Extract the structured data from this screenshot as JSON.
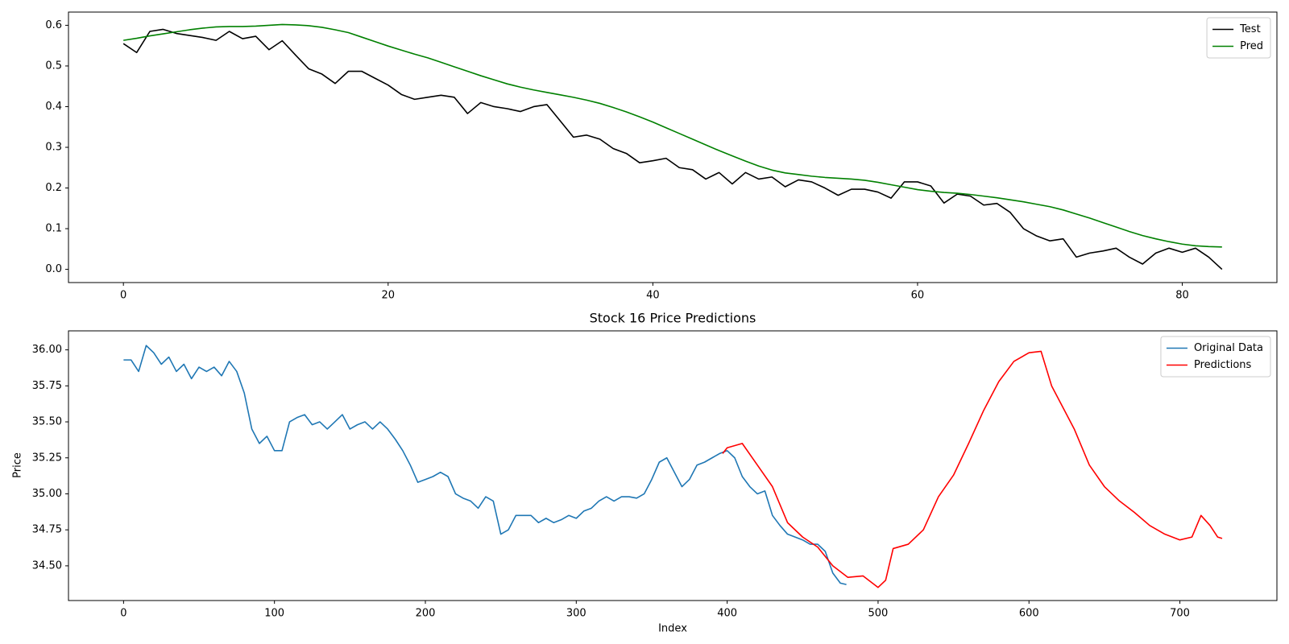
{
  "chart_data": [
    {
      "type": "line",
      "x": [
        0,
        1,
        2,
        3,
        4,
        5,
        6,
        7,
        8,
        9,
        10,
        11,
        12,
        13,
        14,
        15,
        16,
        17,
        18,
        19,
        20,
        21,
        22,
        23,
        24,
        25,
        26,
        27,
        28,
        29,
        30,
        31,
        32,
        33,
        34,
        35,
        36,
        37,
        38,
        39,
        40,
        41,
        42,
        43,
        44,
        45,
        46,
        47,
        48,
        49,
        50,
        51,
        52,
        53,
        54,
        55,
        56,
        57,
        58,
        59,
        60,
        61,
        62,
        63,
        64,
        65,
        66,
        67,
        68,
        69,
        70,
        71,
        72,
        73,
        74,
        75,
        76,
        77,
        78,
        79,
        80,
        81,
        82,
        83
      ],
      "series": [
        {
          "name": "Test",
          "color": "#000000",
          "values": [
            0.555,
            0.533,
            0.585,
            0.59,
            0.58,
            0.575,
            0.57,
            0.563,
            0.585,
            0.567,
            0.573,
            0.54,
            0.562,
            0.527,
            0.493,
            0.48,
            0.457,
            0.487,
            0.487,
            0.47,
            0.453,
            0.43,
            0.418,
            0.423,
            0.428,
            0.423,
            0.383,
            0.41,
            0.4,
            0.395,
            0.388,
            0.4,
            0.405,
            0.365,
            0.325,
            0.33,
            0.32,
            0.297,
            0.285,
            0.262,
            0.267,
            0.273,
            0.25,
            0.245,
            0.222,
            0.238,
            0.21,
            0.238,
            0.222,
            0.227,
            0.203,
            0.22,
            0.215,
            0.2,
            0.182,
            0.197,
            0.197,
            0.19,
            0.175,
            0.215,
            0.215,
            0.205,
            0.163,
            0.185,
            0.18,
            0.158,
            0.162,
            0.14,
            0.1,
            0.082,
            0.07,
            0.075,
            0.03,
            0.04,
            0.045,
            0.052,
            0.03,
            0.013,
            0.04,
            0.052,
            0.042,
            0.052,
            0.03,
            0.0
          ]
        },
        {
          "name": "Pred",
          "color": "#008000",
          "values": [
            0.563,
            0.568,
            0.574,
            0.579,
            0.584,
            0.589,
            0.593,
            0.596,
            0.597,
            0.597,
            0.598,
            0.6,
            0.602,
            0.601,
            0.599,
            0.595,
            0.589,
            0.582,
            0.571,
            0.56,
            0.549,
            0.539,
            0.529,
            0.52,
            0.509,
            0.498,
            0.487,
            0.476,
            0.466,
            0.456,
            0.448,
            0.441,
            0.435,
            0.429,
            0.423,
            0.416,
            0.408,
            0.398,
            0.387,
            0.375,
            0.362,
            0.348,
            0.334,
            0.32,
            0.306,
            0.292,
            0.279,
            0.266,
            0.254,
            0.244,
            0.237,
            0.233,
            0.229,
            0.226,
            0.224,
            0.222,
            0.219,
            0.214,
            0.208,
            0.202,
            0.196,
            0.192,
            0.189,
            0.187,
            0.184,
            0.18,
            0.176,
            0.171,
            0.166,
            0.16,
            0.154,
            0.146,
            0.136,
            0.126,
            0.115,
            0.104,
            0.093,
            0.083,
            0.075,
            0.068,
            0.062,
            0.058,
            0.056,
            0.055
          ]
        }
      ],
      "xlim": [
        -4.15,
        87.15
      ],
      "xticks": [
        0,
        20,
        40,
        60,
        80
      ],
      "ylim": [
        -0.0325,
        0.6325
      ],
      "yticks": [
        {
          "value": 0,
          "label": "0.0"
        },
        0.1,
        0.2,
        0.3,
        0.4,
        0.5,
        0.6
      ],
      "grid": false,
      "legend": "upper-right"
    },
    {
      "type": "line",
      "title": "Stock 16 Price Predictions",
      "xlabel": "Index",
      "ylabel": "Price",
      "series": [
        {
          "name": "Original Data",
          "color": "#1f77b4",
          "x": [
            0,
            5,
            10,
            15,
            20,
            25,
            30,
            35,
            40,
            45,
            50,
            55,
            60,
            65,
            70,
            75,
            80,
            85,
            90,
            95,
            100,
            105,
            110,
            115,
            120,
            125,
            130,
            135,
            140,
            145,
            150,
            155,
            160,
            165,
            170,
            175,
            180,
            185,
            190,
            195,
            200,
            205,
            210,
            215,
            220,
            225,
            230,
            235,
            240,
            245,
            250,
            255,
            260,
            265,
            270,
            275,
            280,
            285,
            290,
            295,
            300,
            305,
            310,
            315,
            320,
            325,
            330,
            335,
            340,
            345,
            350,
            355,
            360,
            365,
            370,
            375,
            380,
            385,
            390,
            395,
            400,
            405,
            410,
            415,
            420,
            425,
            430,
            435,
            440,
            445,
            450,
            455,
            460,
            465,
            470,
            475,
            479
          ],
          "values": [
            35.93,
            35.93,
            35.85,
            36.03,
            35.98,
            35.9,
            35.95,
            35.85,
            35.9,
            35.8,
            35.88,
            35.85,
            35.88,
            35.82,
            35.92,
            35.85,
            35.7,
            35.45,
            35.35,
            35.4,
            35.3,
            35.3,
            35.5,
            35.53,
            35.55,
            35.48,
            35.5,
            35.45,
            35.5,
            35.55,
            35.45,
            35.48,
            35.5,
            35.45,
            35.5,
            35.45,
            35.38,
            35.3,
            35.2,
            35.08,
            35.1,
            35.12,
            35.15,
            35.12,
            35.0,
            34.97,
            34.95,
            34.9,
            34.98,
            34.95,
            34.72,
            34.75,
            34.85,
            34.85,
            34.85,
            34.8,
            34.83,
            34.8,
            34.82,
            34.85,
            34.83,
            34.88,
            34.9,
            34.95,
            34.98,
            34.95,
            34.98,
            34.98,
            34.97,
            35.0,
            35.1,
            35.22,
            35.25,
            35.15,
            35.05,
            35.1,
            35.2,
            35.22,
            35.25,
            35.28,
            35.3,
            35.25,
            35.12,
            35.05,
            35.0,
            35.02,
            34.85,
            34.78,
            34.72,
            34.7,
            34.68,
            34.65,
            34.65,
            34.6,
            34.45,
            34.38,
            34.37
          ]
        },
        {
          "name": "Predictions",
          "color": "#ff0000",
          "x": [
            397,
            400,
            410,
            420,
            430,
            440,
            450,
            460,
            470,
            480,
            490,
            500,
            505,
            510,
            520,
            530,
            540,
            550,
            560,
            570,
            580,
            590,
            600,
            608,
            615,
            630,
            640,
            650,
            660,
            670,
            680,
            690,
            700,
            708,
            714,
            720,
            725,
            728
          ],
          "values": [
            35.28,
            35.32,
            35.35,
            35.2,
            35.05,
            34.8,
            34.7,
            34.63,
            34.5,
            34.42,
            34.43,
            34.35,
            34.4,
            34.62,
            34.65,
            34.75,
            34.98,
            35.13,
            35.35,
            35.58,
            35.78,
            35.92,
            35.98,
            35.99,
            35.75,
            35.45,
            35.2,
            35.05,
            34.95,
            34.87,
            34.78,
            34.72,
            34.68,
            34.7,
            34.85,
            34.78,
            34.7,
            34.69
          ]
        }
      ],
      "xlim": [
        -36.5,
        764.3
      ],
      "xticks": [
        0,
        100,
        200,
        300,
        400,
        500,
        600,
        700
      ],
      "ylim": [
        34.259,
        36.132
      ],
      "yticks": [
        {
          "value": 34.5,
          "label": "34.50"
        },
        {
          "value": 34.75,
          "label": "34.75"
        },
        {
          "value": 35,
          "label": "35.00"
        },
        {
          "value": 35.25,
          "label": "35.25"
        },
        {
          "value": 35.5,
          "label": "35.50"
        },
        {
          "value": 35.75,
          "label": "35.75"
        },
        {
          "value": 36,
          "label": "36.00"
        }
      ],
      "grid": false,
      "legend": "upper-right"
    }
  ]
}
